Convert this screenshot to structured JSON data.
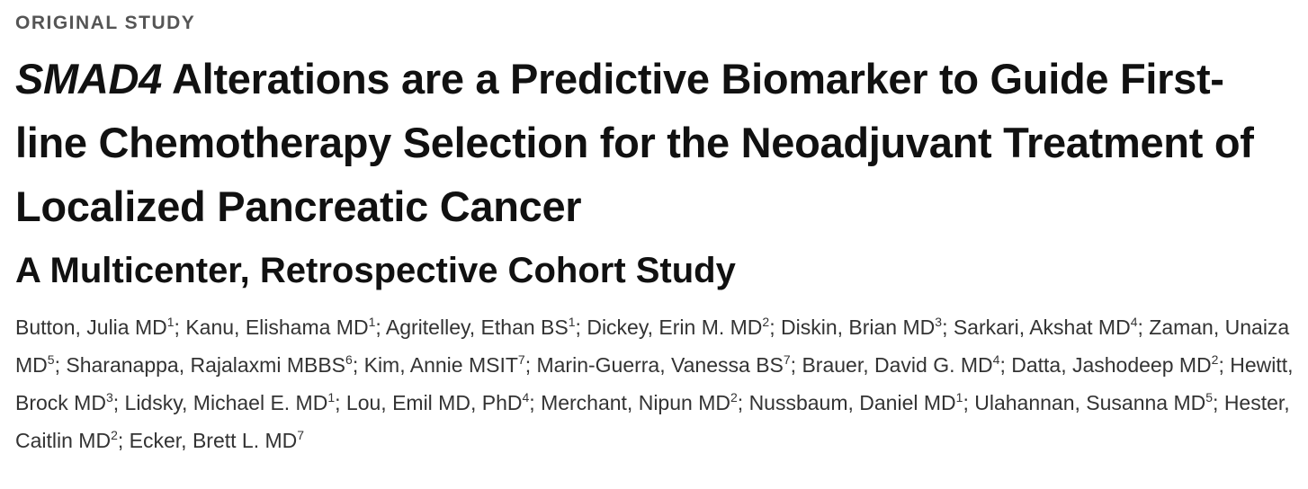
{
  "label": "ORIGINAL STUDY",
  "title": {
    "gene": "SMAD4",
    "rest": " Alterations are a Predictive Biomarker to Guide First-line Chemotherapy Selection for the Neoadjuvant Treatment of Localized Pancreatic Cancer"
  },
  "subtitle": "A Multicenter, Retrospective Cohort Study",
  "author_separator": "; ",
  "authors": [
    {
      "name": "Button, Julia MD",
      "affiliation": 1
    },
    {
      "name": "Kanu, Elishama MD",
      "affiliation": 1
    },
    {
      "name": "Agritelley, Ethan BS",
      "affiliation": 1
    },
    {
      "name": "Dickey, Erin M. MD",
      "affiliation": 2
    },
    {
      "name": "Diskin, Brian MD",
      "affiliation": 3
    },
    {
      "name": "Sarkari, Akshat MD",
      "affiliation": 4
    },
    {
      "name": "Zaman, Unaiza MD",
      "affiliation": 5
    },
    {
      "name": "Sharanappa, Rajalaxmi MBBS",
      "affiliation": 6
    },
    {
      "name": "Kim, Annie MSIT",
      "affiliation": 7
    },
    {
      "name": "Marin-Guerra, Vanessa BS",
      "affiliation": 7
    },
    {
      "name": "Brauer, David G. MD",
      "affiliation": 4
    },
    {
      "name": "Datta, Jashodeep MD",
      "affiliation": 2
    },
    {
      "name": "Hewitt, Brock MD",
      "affiliation": 3
    },
    {
      "name": "Lidsky, Michael E. MD",
      "affiliation": 1
    },
    {
      "name": "Lou, Emil MD, PhD",
      "affiliation": 4
    },
    {
      "name": "Merchant, Nipun MD",
      "affiliation": 2
    },
    {
      "name": "Nussbaum, Daniel MD",
      "affiliation": 1
    },
    {
      "name": "Ulahannan, Susanna MD",
      "affiliation": 5
    },
    {
      "name": "Hester, Caitlin MD",
      "affiliation": 2
    },
    {
      "name": "Ecker, Brett L. MD",
      "affiliation": 7
    }
  ]
}
